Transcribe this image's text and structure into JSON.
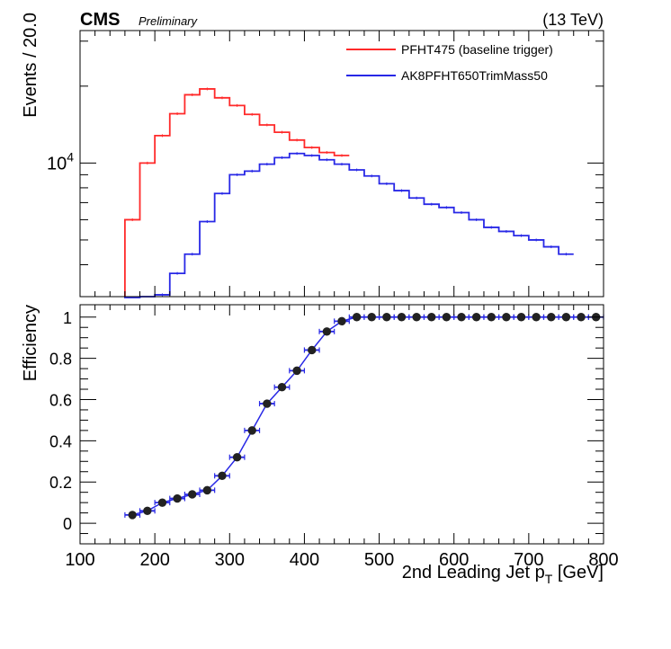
{
  "header": {
    "experiment": "CMS",
    "status": "Preliminary",
    "energy": "(13 TeV)"
  },
  "colors": {
    "baseline": "#ff2a2a",
    "trigger": "#2828e6",
    "points": "#222222"
  },
  "chart_data": [
    {
      "type": "line",
      "panel": "top",
      "ylabel": "Events / 20.0",
      "yscale": "log",
      "yticks_labeled": [
        {
          "value": 10000,
          "mantissa": "10",
          "exponent": "4"
        }
      ],
      "xlim": [
        100,
        800
      ],
      "ylim": [
        3000,
        33000
      ],
      "legend_position": "top-right",
      "bin_width": 20,
      "bin_edges_start": 160,
      "series": [
        {
          "name": "PFHT475 (baseline trigger)",
          "color_key": "baseline",
          "values": [
            6000,
            10000,
            12800,
            15600,
            18500,
            19500,
            18000,
            16800,
            15500,
            14100,
            13200,
            12300,
            11500,
            11000,
            10700
          ]
        },
        {
          "name": "AK8PFHT650TrimMass50",
          "color_key": "trigger",
          "values": [
            0,
            2600,
            3050,
            3700,
            4400,
            5900,
            7600,
            9000,
            9300,
            9900,
            10500,
            10900,
            10700,
            10300,
            9900,
            9400,
            8900,
            8300,
            7800,
            7300,
            6900,
            6700,
            6400,
            6000,
            5600,
            5400,
            5200,
            5000,
            4700,
            4400
          ]
        }
      ]
    },
    {
      "type": "scatter",
      "panel": "bottom",
      "ylabel": "Efficiency",
      "xlabel_main": "2nd Leading Jet p",
      "xlabel_sub": "T",
      "xlabel_unit": " [GeV]",
      "xlim": [
        100,
        800
      ],
      "ylim": [
        -0.1,
        1.06
      ],
      "xticks": [
        100,
        200,
        300,
        400,
        500,
        600,
        700,
        800
      ],
      "yticks": [
        0,
        0.2,
        0.4,
        0.6,
        0.8,
        1
      ],
      "bin_width": 20,
      "x": [
        170,
        190,
        210,
        230,
        250,
        270,
        290,
        310,
        330,
        350,
        370,
        390,
        410,
        430,
        450,
        470,
        490,
        510,
        530,
        550,
        570,
        590,
        610,
        630,
        650,
        670,
        690,
        710,
        730,
        750,
        770,
        790
      ],
      "y": [
        0.04,
        0.06,
        0.1,
        0.12,
        0.14,
        0.16,
        0.23,
        0.32,
        0.45,
        0.58,
        0.66,
        0.74,
        0.84,
        0.93,
        0.98,
        1.0,
        1.0,
        1.0,
        1.0,
        1.0,
        1.0,
        1.0,
        1.0,
        1.0,
        1.0,
        1.0,
        1.0,
        1.0,
        1.0,
        1.0,
        1.0,
        1.0
      ]
    }
  ]
}
